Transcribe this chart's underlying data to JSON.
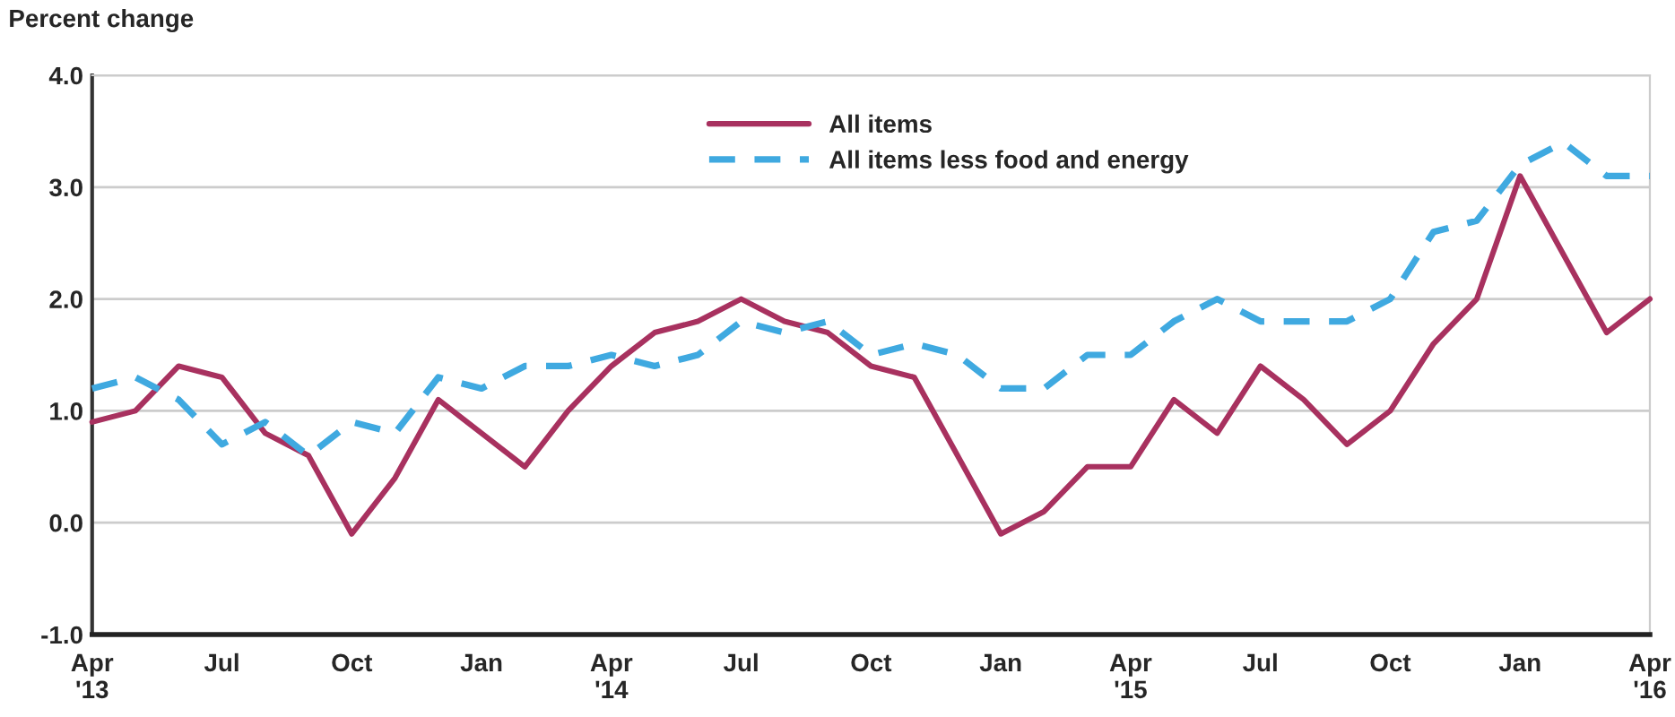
{
  "chart_data": {
    "type": "line",
    "ylabel": "Percent change",
    "categories": [
      "Apr\n'13",
      null,
      null,
      "Jul",
      null,
      null,
      "Oct",
      null,
      null,
      "Jan",
      null,
      null,
      "Apr\n'14",
      null,
      null,
      "Jul",
      null,
      null,
      "Oct",
      null,
      null,
      "Jan",
      null,
      null,
      "Apr\n'15",
      null,
      null,
      "Jul",
      null,
      null,
      "Oct",
      null,
      null,
      "Jan",
      null,
      null,
      "Apr\n'16"
    ],
    "series": [
      {
        "name": "All items",
        "color": "#a8315f",
        "line_style": "solid",
        "values": [
          0.9,
          1.0,
          1.4,
          1.3,
          0.8,
          0.6,
          -0.1,
          0.4,
          1.1,
          0.8,
          0.5,
          1.0,
          1.4,
          1.7,
          1.8,
          2.0,
          1.8,
          1.7,
          1.4,
          1.3,
          0.6,
          -0.1,
          0.1,
          0.5,
          0.5,
          1.1,
          0.8,
          1.4,
          1.1,
          0.7,
          1.0,
          1.6,
          2.0,
          3.1,
          2.4,
          1.7,
          2.0
        ]
      },
      {
        "name": "All items less food and energy",
        "color": "#3fa9e0",
        "line_style": "dashed",
        "values": [
          1.2,
          1.3,
          1.1,
          0.7,
          0.9,
          0.6,
          0.9,
          0.8,
          1.3,
          1.2,
          1.4,
          1.4,
          1.5,
          1.4,
          1.5,
          1.8,
          1.7,
          1.8,
          1.5,
          1.6,
          1.5,
          1.2,
          1.2,
          1.5,
          1.5,
          1.8,
          2.0,
          1.8,
          1.8,
          1.8,
          2.0,
          2.6,
          2.7,
          3.2,
          3.4,
          3.1,
          3.1
        ]
      }
    ],
    "ylim": [
      -1,
      4
    ],
    "yticks": [
      {
        "value": -1,
        "label": "-1.0"
      },
      {
        "value": 0,
        "label": "0.0"
      },
      {
        "value": 1,
        "label": "1.0"
      },
      {
        "value": 2,
        "label": "2.0"
      },
      {
        "value": 3,
        "label": "3.0"
      },
      {
        "value": 4,
        "label": "4.0"
      }
    ],
    "grid": "y",
    "legend": "top",
    "marker": "none"
  }
}
